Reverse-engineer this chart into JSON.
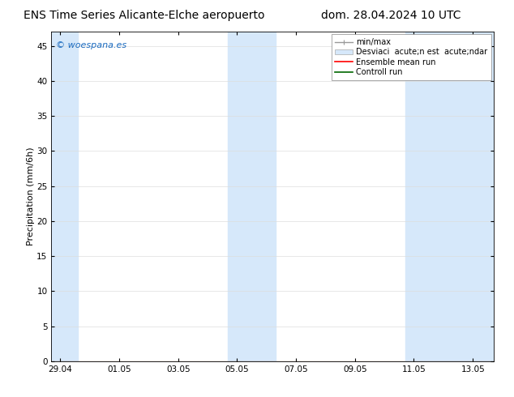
{
  "title_left": "ENS Time Series Alicante-Elche aeropuerto",
  "title_right": "dom. 28.04.2024 10 UTC",
  "ylabel": "Precipitation (mm/6h)",
  "watermark": "© woespana.es",
  "watermark_color": "#1a6abf",
  "background_color": "#ffffff",
  "plot_bg_color": "#ffffff",
  "ylim": [
    0,
    47
  ],
  "yticks": [
    0,
    5,
    10,
    15,
    20,
    25,
    30,
    35,
    40,
    45
  ],
  "xlim_start": -0.3,
  "xlim_end": 14.7,
  "xtick_labels": [
    "29.04",
    "01.05",
    "03.05",
    "05.05",
    "07.05",
    "09.05",
    "11.05",
    "13.05"
  ],
  "xtick_positions": [
    0,
    2,
    4,
    6,
    8,
    10,
    12,
    14
  ],
  "shaded_regions": [
    {
      "start": -0.3,
      "end": 0.6,
      "color": "#d6e8fa",
      "alpha": 1.0
    },
    {
      "start": 5.7,
      "end": 7.3,
      "color": "#d6e8fa",
      "alpha": 1.0
    },
    {
      "start": 11.7,
      "end": 12.7,
      "color": "#d6e8fa",
      "alpha": 1.0
    },
    {
      "start": 12.7,
      "end": 14.7,
      "color": "#d6e8fa",
      "alpha": 1.0
    }
  ],
  "title_fontsize": 10,
  "axis_fontsize": 8,
  "tick_fontsize": 7.5,
  "legend_fontsize": 7
}
